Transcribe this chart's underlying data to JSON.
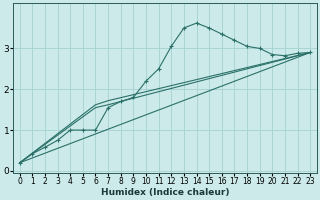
{
  "xlabel": "Humidex (Indice chaleur)",
  "bg_color": "#cceaea",
  "grid_color": "#aad4d4",
  "line_color": "#2a7068",
  "xlim": [
    -0.5,
    23.5
  ],
  "ylim": [
    -0.05,
    4.1
  ],
  "xticks": [
    0,
    1,
    2,
    3,
    4,
    5,
    6,
    7,
    8,
    9,
    10,
    11,
    12,
    13,
    14,
    15,
    16,
    17,
    18,
    19,
    20,
    21,
    22,
    23
  ],
  "yticks": [
    0,
    1,
    2,
    3
  ],
  "series": [
    {
      "x": [
        0,
        1,
        2,
        3,
        4,
        5,
        6,
        7,
        8,
        9,
        10,
        11,
        12,
        13,
        14,
        15,
        16,
        17,
        18,
        19,
        20,
        21,
        22,
        23
      ],
      "y": [
        0.2,
        0.42,
        0.58,
        0.75,
        1.0,
        1.0,
        1.0,
        1.55,
        1.7,
        1.8,
        2.2,
        2.5,
        3.05,
        3.5,
        3.62,
        3.5,
        3.35,
        3.2,
        3.05,
        3.0,
        2.85,
        2.82,
        2.88,
        2.9
      ],
      "marker": true
    },
    {
      "x": [
        0,
        23
      ],
      "y": [
        0.2,
        2.9
      ],
      "marker": false
    },
    {
      "x": [
        0,
        6,
        7,
        23
      ],
      "y": [
        0.2,
        1.55,
        1.62,
        2.9
      ],
      "marker": false
    },
    {
      "x": [
        0,
        6,
        7,
        23
      ],
      "y": [
        0.2,
        1.62,
        1.72,
        2.9
      ],
      "marker": false
    }
  ]
}
